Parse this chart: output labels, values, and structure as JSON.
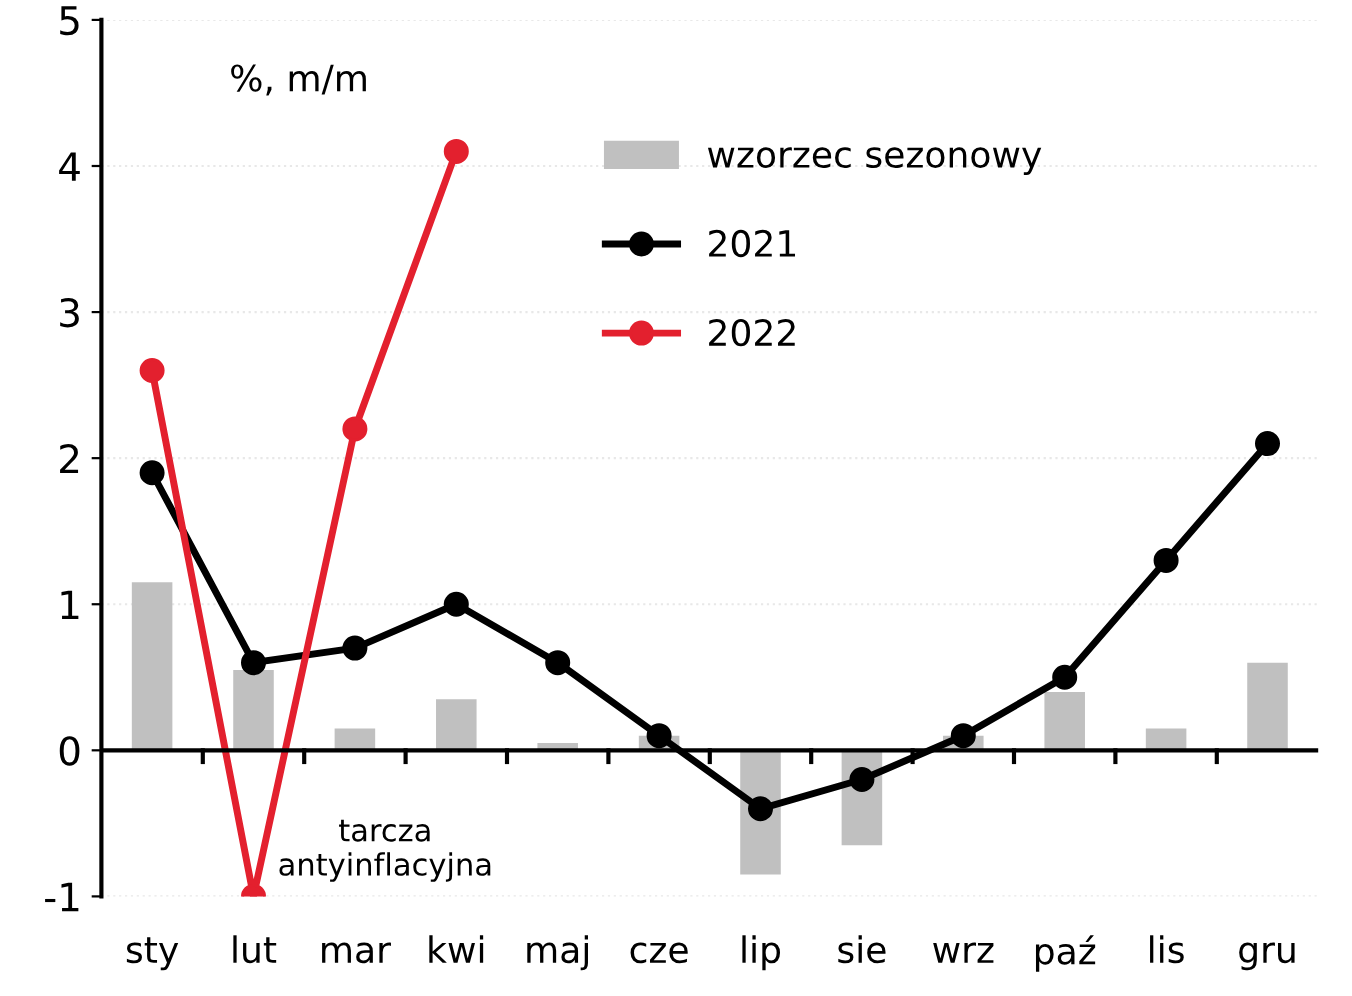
{
  "chart_data": {
    "type": "bar",
    "categories": [
      "sty",
      "lut",
      "mar",
      "kwi",
      "maj",
      "cze",
      "lip",
      "sie",
      "wrz",
      "paź",
      "lis",
      "gru"
    ],
    "series": [
      {
        "name": "wzorzec sezonowy",
        "color": "#c0c0c0",
        "values": [
          1.15,
          0.55,
          0.15,
          0.35,
          0.05,
          0.1,
          -0.85,
          -0.65,
          0.1,
          0.4,
          0.15,
          0.6
        ]
      },
      {
        "name": "2021",
        "type": "line",
        "color": "#000000",
        "values": [
          1.9,
          0.6,
          0.7,
          1.0,
          0.6,
          0.1,
          -0.4,
          -0.2,
          0.1,
          0.5,
          1.3,
          2.1
        ]
      },
      {
        "name": "2022",
        "type": "line",
        "color": "#e3202e",
        "values": [
          2.6,
          -1.0,
          2.2,
          4.1,
          null,
          null,
          null,
          null,
          null,
          null,
          null,
          null
        ]
      }
    ],
    "ylim": [
      -1,
      5
    ],
    "yticks": [
      -1,
      0,
      1,
      2,
      3,
      4,
      5
    ],
    "grid": "y",
    "legend": "top right",
    "marker": "circle",
    "annotations": [
      "%, m/m",
      {
        "text": "tarcza\nantyinflacyjna",
        "x": "lut",
        "y": -1
      }
    ]
  }
}
